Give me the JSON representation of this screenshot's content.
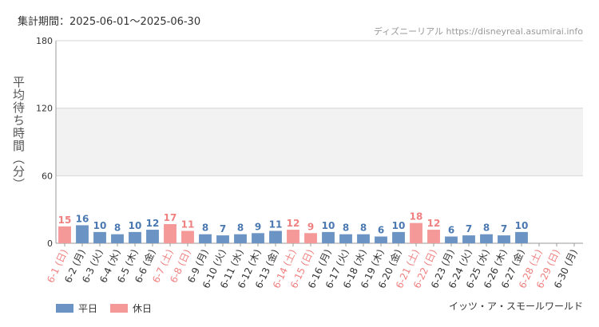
{
  "header": {
    "period": "集計期間：2025-06-01～2025-06-30",
    "source": "ディズニーリアル https://disneyreal.asumirai.info",
    "subject": "イッツ・ア・スモールワールド"
  },
  "legend": [
    {
      "label": "平日",
      "color": "#6b93c4"
    },
    {
      "label": "休日",
      "color": "#f49898"
    }
  ],
  "chart_data": {
    "type": "bar",
    "ylabel": "平均待ち時間（分）",
    "ylim": [
      0,
      180
    ],
    "yticks": [
      "0",
      "60",
      "120",
      "180"
    ],
    "grid": true,
    "categories": [
      "6-1 (日)",
      "6-2 (月)",
      "6-3 (火)",
      "6-4 (水)",
      "6-5 (木)",
      "6-6 (金)",
      "6-7 (土)",
      "6-8 (日)",
      "6-9 (月)",
      "6-10 (火)",
      "6-11 (水)",
      "6-12 (木)",
      "6-13 (金)",
      "6-14 (土)",
      "6-15 (日)",
      "6-16 (月)",
      "6-17 (火)",
      "6-18 (水)",
      "6-19 (木)",
      "6-20 (金)",
      "6-21 (土)",
      "6-22 (日)",
      "6-23 (月)",
      "6-24 (火)",
      "6-25 (水)",
      "6-26 (木)",
      "6-27 (金)",
      "6-28 (土)",
      "6-29 (日)",
      "6-30 (月)"
    ],
    "values": [
      15,
      16,
      10,
      8,
      10,
      12,
      17,
      11,
      8,
      7,
      8,
      9,
      11,
      12,
      9,
      10,
      8,
      8,
      6,
      10,
      18,
      12,
      6,
      7,
      8,
      7,
      10,
      null,
      null,
      null
    ],
    "day_type": [
      "holiday",
      "weekday",
      "weekday",
      "weekday",
      "weekday",
      "weekday",
      "holiday",
      "holiday",
      "weekday",
      "weekday",
      "weekday",
      "weekday",
      "weekday",
      "holiday",
      "holiday",
      "weekday",
      "weekday",
      "weekday",
      "weekday",
      "weekday",
      "holiday",
      "holiday",
      "weekday",
      "weekday",
      "weekday",
      "weekday",
      "weekday",
      "holiday",
      "holiday",
      "weekday"
    ],
    "colors": {
      "weekday": "#6b93c4",
      "holiday": "#f49898",
      "weekday_text": "#4a78b0",
      "holiday_text": "#f08080",
      "label_weekday": "#333333",
      "label_holiday": "#f08080"
    }
  }
}
